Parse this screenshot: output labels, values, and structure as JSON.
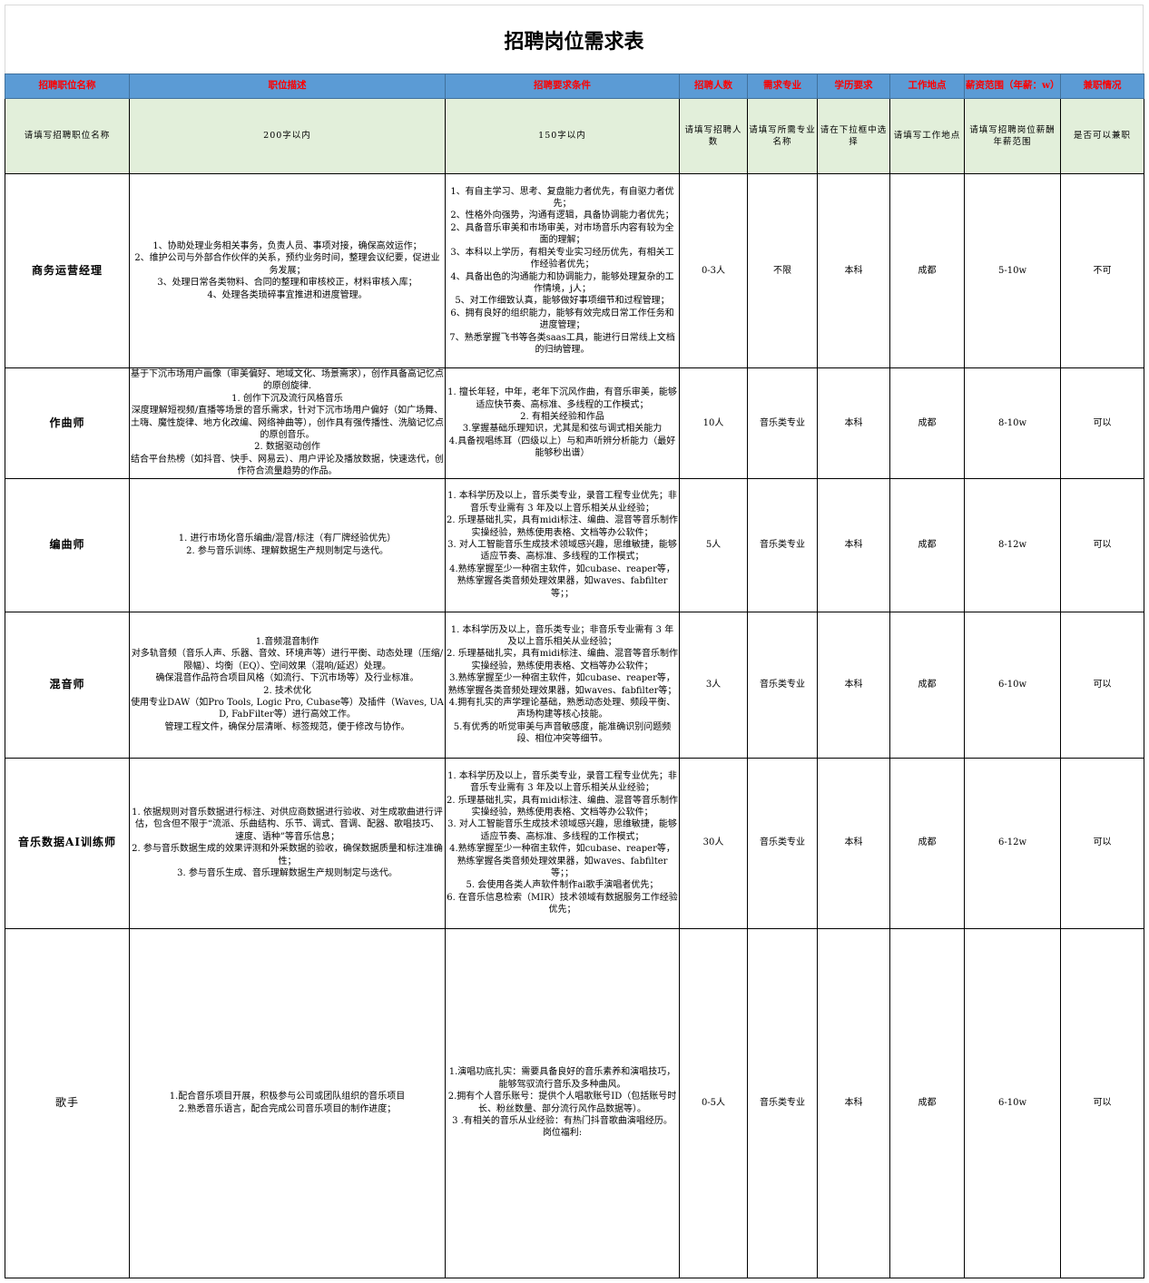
{
  "title": "招聘岗位需求表",
  "columns": [
    "招聘职位名称",
    "职位描述",
    "招聘要求条件",
    "招聘人数",
    "需求专业",
    "学历要求",
    "工作地点",
    "薪资范围（年薪：w）",
    "兼职情况"
  ],
  "hints": [
    "请填写招聘职位名称",
    "200字以内",
    "150字以内",
    "请填写招聘人数",
    "请填写所需专业名称",
    "请在下拉框中选择",
    "请填写工作地点",
    "请填写招聘岗位薪酬年薪范围",
    "是否可以兼职"
  ],
  "colors": {
    "header_bg": "#5b9bd5",
    "header_text": "#ff0000",
    "hint_bg": "#e2efda"
  },
  "rows": [
    {
      "name": "商务运营经理",
      "desc": "1、协助处理业务相关事务，负责人员、事项对接，确保高效运作；\n2、维护公司与外部合作伙伴的关系，预约业务时间，整理会议纪要，促进业务发展；\n3、处理日常各类物料、合同的整理和审核校正，材料审核入库；\n4、处理各类琐碎事宜推进和进度管理。",
      "req": "1、有自主学习、思考、复盘能力者优先，有自驱力者优先；\n2、性格外向强势，沟通有逻辑，具备协调能力者优先；\n2、具备音乐审美和市场审美，对市场音乐内容有较为全面的理解；\n3、本科以上学历，有相关专业实习经历优先，有相关工作经验者优先；\n4、具备出色的沟通能力和协调能力，能够处理复杂的工作情境，j人；\n5、对工作细致认真，能够做好事项细节和过程管理；\n6、拥有良好的组织能力，能够有效完成日常工作任务和进度管理；\n7、熟悉掌握飞书等各类saas工具，能进行日常线上文档的归纳管理。",
      "count": "0-3人",
      "major": "不限",
      "edu": "本科",
      "location": "成都",
      "salary": "5-10w",
      "parttime": "不可"
    },
    {
      "name": "作曲师",
      "desc": "基于下沉市场用户画像（审美偏好、地域文化、场景需求），创作具备高记忆点的原创旋律.\n1. 创作下沉及流行风格音乐\n深度理解短视频/直播等场景的音乐需求，针对下沉市场用户偏好（如广场舞、土嗨、魔性旋律、地方化改编、网络神曲等），创作具有强传播性、洗脑记忆点的原创音乐。\n2. 数据驱动创作\n结合平台热榜（如抖音、快手、网易云）、用户评论及播放数据，快速迭代，创作符合流量趋势的作品。",
      "req": "1. 擅长年轻，中年，老年下沉风作曲，有音乐审美，能够适应快节奏、高标准、多线程的工作模式；\n2. 有相关经验和作品\n3.掌握基础乐理知识，尤其是和弦与调式相关能力\n4.具备视唱练耳（四级以上）与和声听辨分析能力（最好能够秒出谱）",
      "count": "10人",
      "major": "音乐类专业",
      "edu": "本科",
      "location": "成都",
      "salary": "8-10w",
      "parttime": "可以"
    },
    {
      "name": "编曲师",
      "desc": "1. 进行市场化音乐编曲/混音/标注（有厂牌经验优先）\n2. 参与音乐训练、理解数据生产规则制定与迭代。",
      "req": "1. 本科学历及以上，音乐类专业，录音工程专业优先；非音乐专业需有 3 年及以上音乐相关从业经验；\n2. 乐理基础扎实，具有midi标注、编曲、混音等音乐制作实操经验，熟练使用表格、文档等办公软件；\n3. 对人工智能音乐生成技术领域感兴趣，思维敏捷，能够适应节奏、高标准、多线程的工作模式；\n4.熟练掌握至少一种宿主软件，如cubase、reaper等，熟练掌握各类音频处理效果器，如waves、fabfilter等；；",
      "count": "5人",
      "major": "音乐类专业",
      "edu": "本科",
      "location": "成都",
      "salary": "8-12w",
      "parttime": "可以"
    },
    {
      "name": "混音师",
      "desc": "1.音频混音制作\n对多轨音频（音乐人声、乐器、音效、环境声等）进行平衡、动态处理（压缩/限幅）、均衡（EQ）、空间效果（混响/延迟）处理。\n确保混音作品符合项目风格（如流行、下沉市场等）及行业标准。\n2. 技术优化\n使用专业DAW（如Pro Tools, Logic Pro, Cubase等）及插件（Waves, UAD, FabFilter等）进行高效工作。\n管理工程文件，确保分层清晰、标签规范，便于修改与协作。",
      "req": "1. 本科学历及以上，音乐类专业；非音乐专业需有 3 年及以上音乐相关从业经验；\n2. 乐理基础扎实，具有midi标注、编曲、混音等音乐制作实操经验，熟练使用表格、文档等办公软件；\n3.熟练掌握至少一种宿主软件，如cubase、reaper等，熟练掌握各类音频处理效果器，如waves、fabfilter等；\n4.拥有扎实的声学理论基础，熟悉动态处理、频段平衡、声场构建等核心技能。\n5.有优秀的听觉审美与声音敏感度，能准确识别问题频段、相位冲突等细节。",
      "count": "3人",
      "major": "音乐类专业",
      "edu": "本科",
      "location": "成都",
      "salary": "6-10w",
      "parttime": "可以"
    },
    {
      "name": "音乐数据AI训练师",
      "desc": "1. 依据规则对音乐数据进行标注、对供应商数据进行验收、对生成歌曲进行评估，包含但不限于“流派、乐曲结构、乐节、调式、音调、配器、歌唱技巧、速度、语种”等音乐信息；\n2. 参与音乐数据生成的效果评测和外采数据的验收，确保数据质量和标注准确性；\n3. 参与音乐生成、音乐理解数据生产规则制定与迭代。",
      "req": "1. 本科学历及以上，音乐类专业，录音工程专业优先；非音乐专业需有 3 年及以上音乐相关从业经验；\n2. 乐理基础扎实，具有midi标注、编曲、混音等音乐制作实操经验，熟练使用表格、文档等办公软件；\n3. 对人工智能音乐生成技术领域感兴趣，思维敏捷，能够适应节奏、高标准、多线程的工作模式；\n4.熟练掌握至少一种宿主软件，如cubase、reaper等，熟练掌握各类音频处理效果器，如waves、fabfilter等；；\n5. 会使用各类人声软件制作ai歌手演唱者优先；\n6. 在音乐信息检索（MIR）技术领域有数据服务工作经验优先；",
      "count": "30人",
      "major": "音乐类专业",
      "edu": "本科",
      "location": "成都",
      "salary": "6-12w",
      "parttime": "可以"
    },
    {
      "name": "歌手",
      "desc": "1.配合音乐项目开展，积极参与公司或团队组织的音乐项目\n2.熟悉音乐语言，配合完成公司音乐项目的制作进度；",
      "req": "1.演唱功底扎实：需要具备良好的音乐素养和演唱技巧，能够驾驭流行音乐及多种曲风。\n2.拥有个人音乐账号：提供个人唱歌账号ID（包括账号时长、粉丝数量、部分流行风作品数据等）。\n3 .有相关的音乐从业经验：有热门抖音歌曲演唱经历。\n岗位福利:",
      "count": "0-5人",
      "major": "音乐类专业",
      "edu": "本科",
      "location": "成都",
      "salary": "6-10w",
      "parttime": "可以"
    }
  ]
}
